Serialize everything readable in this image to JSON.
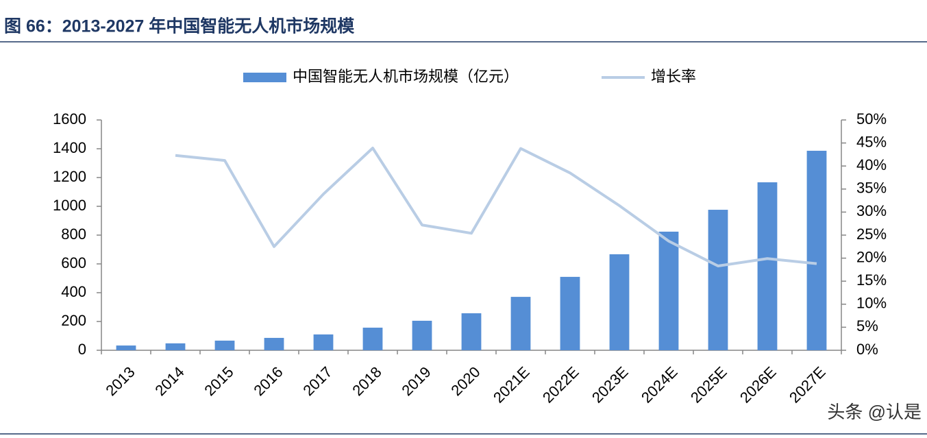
{
  "chart_data": {
    "type": "bar",
    "title": "图 66：2013-2027 年中国智能无人机市场规模",
    "watermark": "头条 @认是",
    "categories": [
      "2013",
      "2014",
      "2015",
      "2016",
      "2017",
      "2018",
      "2019",
      "2020",
      "2021E",
      "2022E",
      "2023E",
      "2024E",
      "2025E",
      "2026E",
      "2027E"
    ],
    "series": [
      {
        "name": "中国智能无人机市场规模（亿元）",
        "type": "bar",
        "color": "#558ed5",
        "values": [
          33,
          48,
          67,
          86,
          110,
          157,
          205,
          257,
          371,
          510,
          667,
          824,
          976,
          1167,
          1386
        ]
      },
      {
        "name": "增长率",
        "type": "line",
        "axis": "y2",
        "color": "#b9cde5",
        "values": [
          null,
          42.3,
          41.2,
          22.5,
          33.9,
          43.9,
          27.2,
          25.4,
          43.8,
          38.5,
          31.4,
          23.7,
          18.3,
          19.9,
          18.8
        ]
      }
    ],
    "ylim": [
      0,
      1600
    ],
    "yticks": [
      0,
      200,
      400,
      600,
      800,
      1000,
      1200,
      1400,
      1600
    ],
    "y2lim": [
      0,
      50
    ],
    "y2ticks": [
      {
        "value": 0,
        "label": "0%"
      },
      {
        "value": 5,
        "label": "5%"
      },
      {
        "value": 10,
        "label": "10%"
      },
      {
        "value": 15,
        "label": "15%"
      },
      {
        "value": 20,
        "label": "20%"
      },
      {
        "value": 25,
        "label": "25%"
      },
      {
        "value": 30,
        "label": "30%"
      },
      {
        "value": 35,
        "label": "35%"
      },
      {
        "value": 40,
        "label": "40%"
      },
      {
        "value": 45,
        "label": "45%"
      },
      {
        "value": 50,
        "label": "50%"
      }
    ],
    "legend": "top",
    "grid": false
  }
}
